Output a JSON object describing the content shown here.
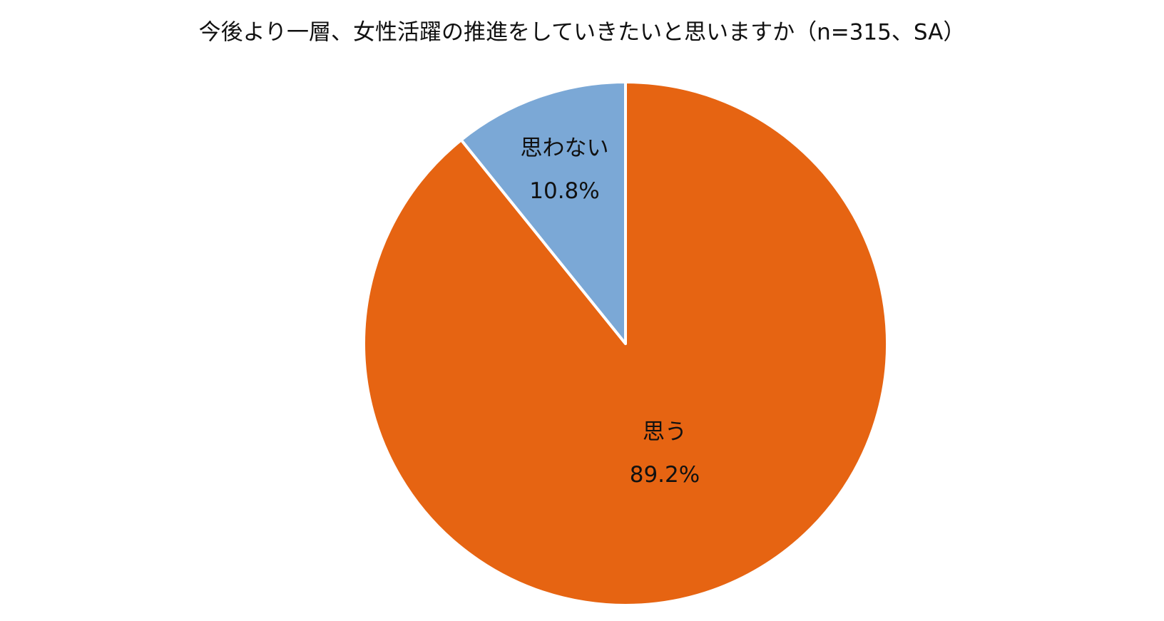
{
  "chart_data": {
    "type": "pie",
    "title": "今後より一層、女性活躍の推進をしていきたいと思いますか（n=315、SA）",
    "categories": [
      "思う",
      "思わない"
    ],
    "values": [
      89.2,
      10.8
    ],
    "value_labels": [
      "89.2%",
      "10.8%"
    ],
    "colors": [
      "#e66412",
      "#7ba8d6"
    ]
  }
}
